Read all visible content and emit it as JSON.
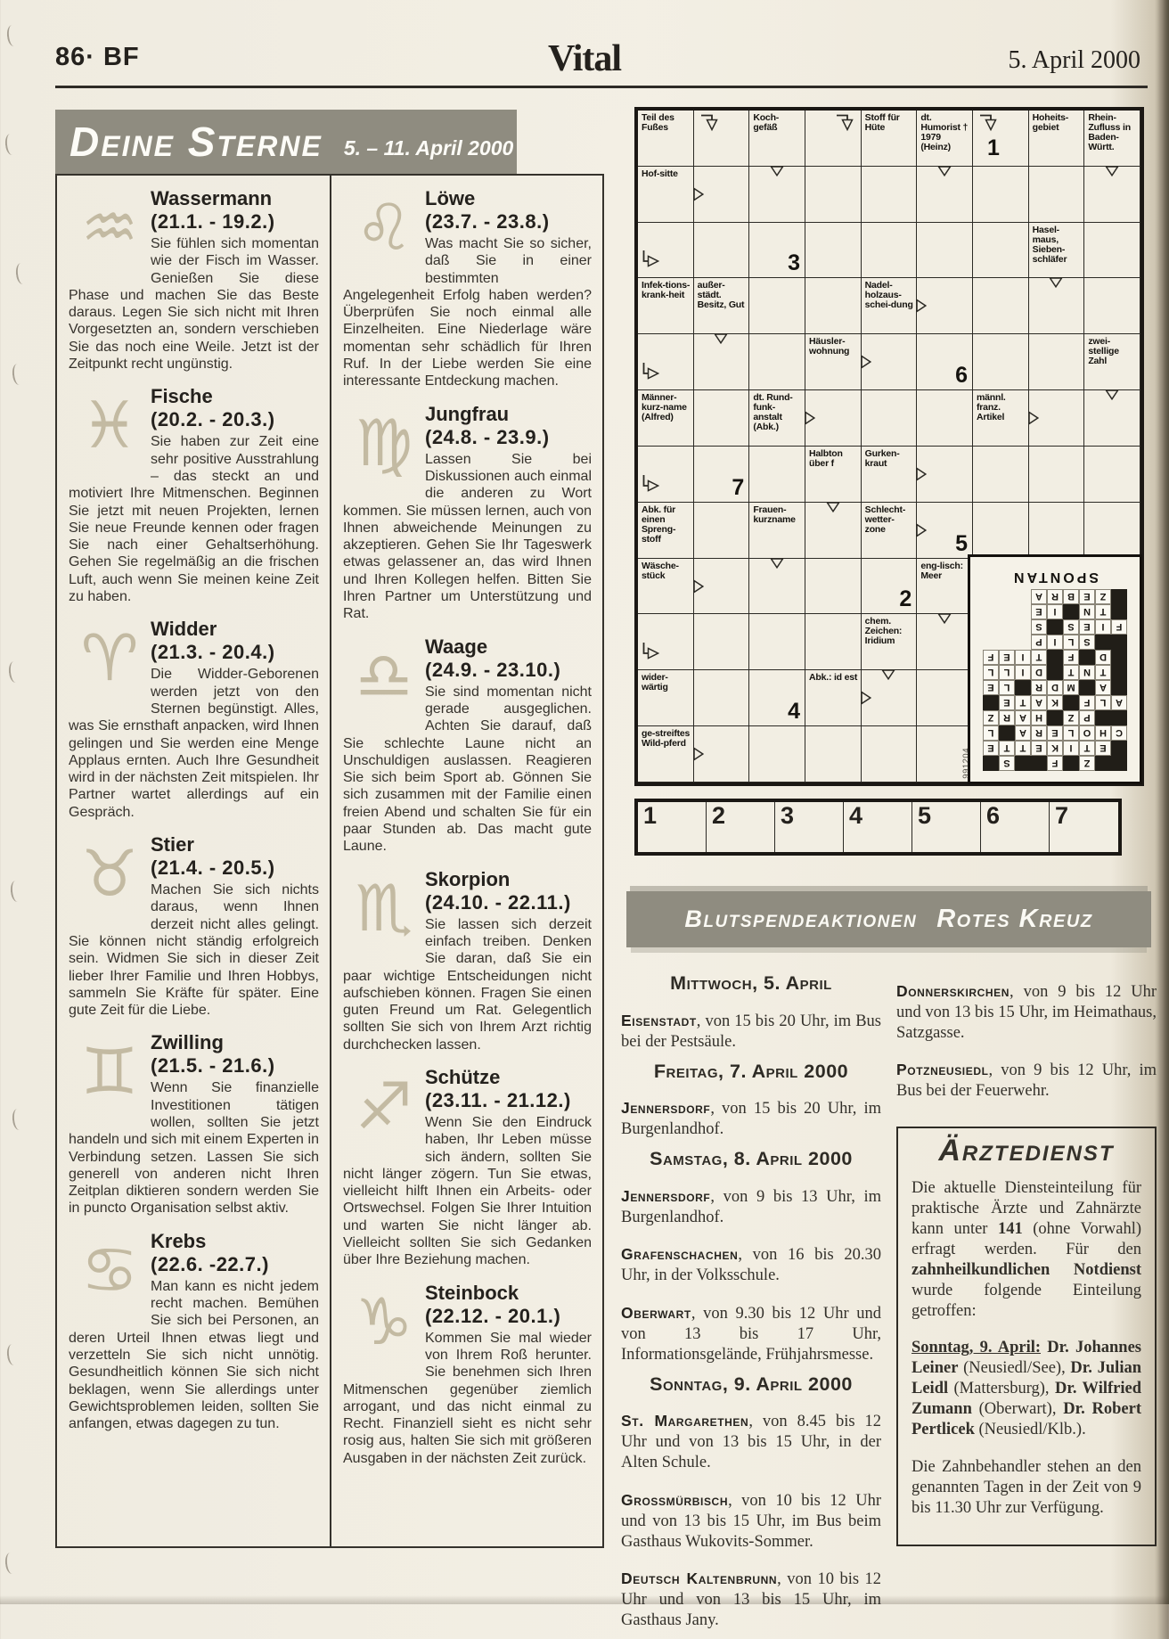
{
  "page": {
    "issue": "86· BF",
    "title": "Vital",
    "date": "5. April 2000"
  },
  "horoscope": {
    "banner_title": "Deine Sterne",
    "banner_range": "5. – 11. April 2000",
    "entries": [
      {
        "name": "Wassermann",
        "dates": "(21.1. - 19.2.)",
        "symbol": "♒",
        "text": "Sie fühlen sich momentan wie der Fisch im Wasser. Genießen Sie diese Phase und machen Sie das Beste daraus. Legen Sie sich nicht mit Ihren Vorgesetzten an, sondern verschieben Sie das noch eine Weile. Jetzt ist der Zeitpunkt recht ungünstig."
      },
      {
        "name": "Fische",
        "dates": "(20.2. - 20.3.)",
        "symbol": "♓",
        "text": "Sie haben zur Zeit eine sehr positive Ausstrahlung – das steckt an und motiviert Ihre Mitmenschen. Beginnen Sie jetzt mit neuen Projekten, lernen Sie neue Freunde kennen oder fragen Sie nach einer Gehaltserhöhung. Gehen Sie regelmäßig an die frischen Luft, auch wenn Sie meinen keine Zeit zu haben."
      },
      {
        "name": "Widder",
        "dates": "(21.3. - 20.4.)",
        "symbol": "♈",
        "text": "Die Widder-Geborenen werden jetzt von den Sternen begünstigt. Alles, was Sie ernsthaft anpacken, wird Ihnen gelingen und Sie werden eine Menge Applaus ernten. Auch Ihre Gesundheit wird in der nächsten Zeit mitspielen. Ihr Partner wartet allerdings auf ein Gespräch."
      },
      {
        "name": "Stier",
        "dates": "(21.4. - 20.5.)",
        "symbol": "♉",
        "text": "Machen Sie sich nichts daraus, wenn Ihnen derzeit nicht alles gelingt. Sie können nicht ständig erfolgreich sein. Widmen Sie sich in dieser Zeit lieber Ihrer Familie und Ihren Hobbys, sammeln Sie Kräfte für später. Eine gute Zeit für die Liebe."
      },
      {
        "name": "Zwilling",
        "dates": "(21.5. - 21.6.)",
        "symbol": "♊",
        "text": "Wenn Sie finanzielle Investitionen tätigen wollen, sollten Sie jetzt handeln und sich mit einem Experten in Verbindung setzen. Lassen Sie sich generell von anderen nicht Ihren Zeitplan diktieren sondern werden Sie in puncto Organisation selbst aktiv."
      },
      {
        "name": "Krebs",
        "dates": "(22.6. -22.7.)",
        "symbol": "♋",
        "text": "Man kann es nicht jedem recht machen. Bemühen Sie sich bei Personen, an deren Urteil Ihnen etwas liegt und verzetteln Sie sich nicht unnötig. Gesundheitlich können Sie sich nicht beklagen, wenn Sie allerdings unter Gewichtsproblemen leiden, sollten Sie anfangen, etwas dagegen zu tun."
      },
      {
        "name": "Löwe",
        "dates": "(23.7. - 23.8.)",
        "symbol": "♌",
        "text": "Was macht Sie so sicher, daß Sie in einer bestimmten Angelegenheit Erfolg haben werden? Überprüfen Sie noch einmal alle Einzelheiten. Eine Niederlage wäre momentan sehr schädlich für Ihren Ruf. In der Liebe werden Sie eine interessante Entdeckung machen."
      },
      {
        "name": "Jungfrau",
        "dates": "(24.8. - 23.9.)",
        "symbol": "♍",
        "text": "Lassen Sie bei Diskussionen auch einmal die anderen zu Wort kommen. Sie müssen lernen, auch von Ihnen abweichende Meinungen zu akzeptieren. Gehen Sie Ihr Tageswerk etwas gelassener an, das wird Ihnen und Ihren Kollegen helfen. Bitten Sie Ihren Partner um Unterstützung und Rat."
      },
      {
        "name": "Waage",
        "dates": "(24.9. - 23.10.)",
        "symbol": "♎",
        "text": "Sie sind momentan nicht gerade ausgeglichen. Achten Sie darauf, daß Sie schlechte Laune nicht an Unschuldigen auslassen. Reagieren Sie sich beim Sport ab. Gönnen Sie sich zusammen mit der Familie einen freien Abend und schalten Sie für ein paar Stunden ab. Das macht gute Laune."
      },
      {
        "name": "Skorpion",
        "dates": "(24.10. - 22.11.)",
        "symbol": "♏",
        "text": "Sie lassen sich derzeit einfach treiben. Denken Sie daran, daß Sie ein paar wichtige Entscheidungen nicht aufschieben können. Fragen Sie einen guten Freund um Rat. Gelegentlich sollten Sie sich von Ihrem Arzt richtig durchchecken lassen."
      },
      {
        "name": "Schütze",
        "dates": "(23.11. - 21.12.)",
        "symbol": "♐",
        "text": "Wenn Sie den Eindruck haben, Ihr Leben müsse sich ändern, sollten Sie nicht länger zögern. Tun Sie etwas, vielleicht hilft Ihnen ein Arbeits- oder Ortswechsel. Folgen Sie Ihrer Intuition und warten Sie nicht länger ab. Vielleicht sollten Sie sich Gedanken über Ihre Beziehung machen."
      },
      {
        "name": "Steinbock",
        "dates": "(22.12. - 20.1.)",
        "symbol": "♑",
        "text": "Kommen Sie mal wieder von Ihrem Roß herunter. Sie benehmen sich Ihren Mitmenschen gegenüber ziemlich arrogant, und das nicht einmal zu Recht. Finanziell sieht es nicht sehr rosig aus, halten Sie sich mit größeren Ausgaben in der nächsten Zeit zurück."
      }
    ]
  },
  "crossword": {
    "cells": [
      {
        "r": 1,
        "c": 1,
        "t": "Teil des Fußes"
      },
      {
        "r": 1,
        "c": 2,
        "a": [
          "ed"
        ]
      },
      {
        "r": 1,
        "c": 3,
        "t": "Koch-gefäß"
      },
      {
        "r": 1,
        "c": 4,
        "a": [
          "ed-r"
        ]
      },
      {
        "r": 1,
        "c": 5,
        "t": "Stoff für Hüte"
      },
      {
        "r": 1,
        "c": 6,
        "t": "dt. Humorist † 1979 (Heinz)"
      },
      {
        "r": 1,
        "c": 7,
        "a": [
          "ed"
        ],
        "n": "1",
        "nc": true
      },
      {
        "r": 1,
        "c": 8,
        "t": "Hoheits-gebiet"
      },
      {
        "r": 1,
        "c": 9,
        "t": "Rhein-Zufluss in Baden-Württ."
      },
      {
        "r": 2,
        "c": 1,
        "t": "Hof-sitte"
      },
      {
        "r": 2,
        "c": 2,
        "a": [
          "tr"
        ]
      },
      {
        "r": 2,
        "c": 3,
        "a": [
          "td"
        ]
      },
      {
        "r": 2,
        "c": 6,
        "a": [
          "td"
        ]
      },
      {
        "r": 2,
        "c": 9,
        "a": [
          "td"
        ]
      },
      {
        "r": 3,
        "c": 1,
        "a": [
          "er"
        ]
      },
      {
        "r": 3,
        "c": 3,
        "n": "3"
      },
      {
        "r": 3,
        "c": 8,
        "t": "Hasel-maus, Sieben-schläfer"
      },
      {
        "r": 4,
        "c": 1,
        "t": "Infek-tions-krank-heit"
      },
      {
        "r": 4,
        "c": 2,
        "t": "außer-städt. Besitz, Gut"
      },
      {
        "r": 4,
        "c": 5,
        "t": "Nadel-holzaus-schei-dung"
      },
      {
        "r": 4,
        "c": 6,
        "a": [
          "tr"
        ]
      },
      {
        "r": 4,
        "c": 8,
        "a": [
          "td"
        ]
      },
      {
        "r": 5,
        "c": 1,
        "a": [
          "er"
        ]
      },
      {
        "r": 5,
        "c": 2,
        "a": [
          "td"
        ]
      },
      {
        "r": 5,
        "c": 4,
        "t": "Häusler-wohnung"
      },
      {
        "r": 5,
        "c": 5,
        "a": [
          "tr"
        ]
      },
      {
        "r": 5,
        "c": 6,
        "n": "6"
      },
      {
        "r": 5,
        "c": 9,
        "t": "zwei-stellige Zahl"
      },
      {
        "r": 6,
        "c": 1,
        "t": "Männer-kurz-name (Alfred)"
      },
      {
        "r": 6,
        "c": 3,
        "t": "dt. Rund-funk-anstalt (Abk.)"
      },
      {
        "r": 6,
        "c": 4,
        "a": [
          "tr"
        ]
      },
      {
        "r": 6,
        "c": 7,
        "t": "männl. franz. Artikel"
      },
      {
        "r": 6,
        "c": 8,
        "a": [
          "tr"
        ]
      },
      {
        "r": 6,
        "c": 9,
        "a": [
          "td"
        ]
      },
      {
        "r": 7,
        "c": 1,
        "a": [
          "er"
        ]
      },
      {
        "r": 7,
        "c": 2,
        "n": "7"
      },
      {
        "r": 7,
        "c": 4,
        "t": "Halbton über f"
      },
      {
        "r": 7,
        "c": 5,
        "t": "Gurken-kraut"
      },
      {
        "r": 7,
        "c": 6,
        "a": [
          "tr"
        ]
      },
      {
        "r": 8,
        "c": 1,
        "t": "Abk. für einen Spreng-stoff"
      },
      {
        "r": 8,
        "c": 3,
        "t": "Frauen-kurzname"
      },
      {
        "r": 8,
        "c": 4,
        "a": [
          "td"
        ]
      },
      {
        "r": 8,
        "c": 5,
        "t": "Schlecht-wetter-zone"
      },
      {
        "r": 8,
        "c": 6,
        "a": [
          "tr"
        ],
        "n": "5"
      },
      {
        "r": 9,
        "c": 1,
        "t": "Wäsche-stück"
      },
      {
        "r": 9,
        "c": 2,
        "a": [
          "tr"
        ]
      },
      {
        "r": 9,
        "c": 3,
        "a": [
          "td"
        ]
      },
      {
        "r": 9,
        "c": 5,
        "n": "2"
      },
      {
        "r": 9,
        "c": 6,
        "t": "eng-lisch: Meer"
      },
      {
        "r": 10,
        "c": 1,
        "a": [
          "er"
        ]
      },
      {
        "r": 10,
        "c": 5,
        "t": "chem. Zeichen: Iridium"
      },
      {
        "r": 10,
        "c": 6,
        "a": [
          "td"
        ]
      },
      {
        "r": 11,
        "c": 1,
        "t": "wider-wärtig"
      },
      {
        "r": 11,
        "c": 3,
        "n": "4"
      },
      {
        "r": 11,
        "c": 4,
        "t": "Abk.: id est"
      },
      {
        "r": 11,
        "c": 5,
        "a": [
          "tr",
          "td"
        ]
      },
      {
        "r": 12,
        "c": 1,
        "t": "ge-streiftes Wild-pferd"
      },
      {
        "r": 12,
        "c": 2,
        "a": [
          "tr"
        ]
      },
      {
        "r": 12,
        "c": 6,
        "imprint": "991204"
      }
    ],
    "strip_numbers": [
      "1",
      "2",
      "3",
      "4",
      "5",
      "6",
      "7"
    ],
    "solution": {
      "title": "SPONTAN",
      "rows": [
        "..Z.F..S.",
        ".ETIKETTE",
        "CHOLERA.L",
        "..PZ.HARZ",
        "ALF.KATE.",
        ".A.MDR.LE",
        ".TNT.DILL",
        ".D.F.TIEF",
        "..SLIP   ",
        "FIES.S   ",
        ".TN.IE   ",
        ".ZEBRA   "
      ]
    }
  },
  "blood": {
    "title1": "Blutspendeaktionen",
    "title2": "Rotes Kreuz",
    "left": [
      {
        "h": "Mittwoch, 5. April"
      },
      {
        "place": "Eisenstadt",
        "details": ", von 15 bis 20 Uhr, im Bus bei der Pestsäule."
      },
      {
        "h": "Freitag, 7. April 2000"
      },
      {
        "place": "Jennersdorf",
        "details": ", von 15 bis 20 Uhr, im Burgenlandhof."
      },
      {
        "h": "Samstag, 8. April 2000"
      },
      {
        "place": "Jennersdorf",
        "details": ", von 9 bis 13 Uhr, im Burgenlandhof."
      },
      {
        "place": "Grafenschachen",
        "details": ", von 16 bis 20.30 Uhr, in der Volksschule."
      },
      {
        "place": "Oberwart",
        "details": ", von 9.30 bis 12 Uhr und von 13 bis 17 Uhr, Informationsgelände, Frühjahrsmesse."
      },
      {
        "h": "Sonntag, 9. April 2000"
      },
      {
        "place": "St. Margarethen",
        "details": ", von 8.45 bis 12 Uhr und von 13 bis 15 Uhr, in der Alten Schule."
      },
      {
        "place": "Grossmürbisch",
        "details": ", von 10 bis 12 Uhr und von 13 bis 15 Uhr, im Bus beim Gasthaus Wukovits-Sommer."
      },
      {
        "place": "Deutsch Kaltenbrunn",
        "details": ", von 10 bis 12 Uhr und von 13 bis 15 Uhr, im Gasthaus Jany."
      }
    ],
    "right": [
      {
        "place": "Donnerskirchen",
        "details": ", von 9 bis 12 Uhr und von 13 bis 15 Uhr, im Heimathaus, Satzgasse."
      },
      {
        "place": "Potzneusiedl",
        "details": ", von 9 bis 12 Uhr, im Bus bei der Feuerwehr."
      }
    ]
  },
  "doctors": {
    "title": "Ärztedienst",
    "paragraphs": [
      [
        {
          "t": "Die aktuelle Diensteinteilung für praktische Ärzte und Zahnärzte kann unter "
        },
        {
          "t": "141",
          "b": true
        },
        {
          "t": " (ohne Vorwahl) erfragt werden. Für den "
        },
        {
          "t": "zahnheilkundlichen Notdienst",
          "b": true
        },
        {
          "t": " wurde folgende Einteilung getroffen:"
        }
      ],
      [
        {
          "t": "Sonntag, 9. April:",
          "b": true,
          "u": true
        },
        {
          "t": " "
        },
        {
          "t": "Dr. Johannes Leiner",
          "b": true
        },
        {
          "t": " (Neusiedl/See), "
        },
        {
          "t": "Dr. Julian Leidl",
          "b": true
        },
        {
          "t": " (Mattersburg), "
        },
        {
          "t": "Dr. Wilfried Zumann",
          "b": true
        },
        {
          "t": " (Oberwart), "
        },
        {
          "t": "Dr. Robert Pertlicek",
          "b": true
        },
        {
          "t": " (Neusiedl/Klb.)."
        }
      ],
      [
        {
          "t": "Die Zahnbehandler stehen an den genannten Tagen in der Zeit von 9 bis 11.30 Uhr zur Verfügung."
        }
      ]
    ]
  }
}
